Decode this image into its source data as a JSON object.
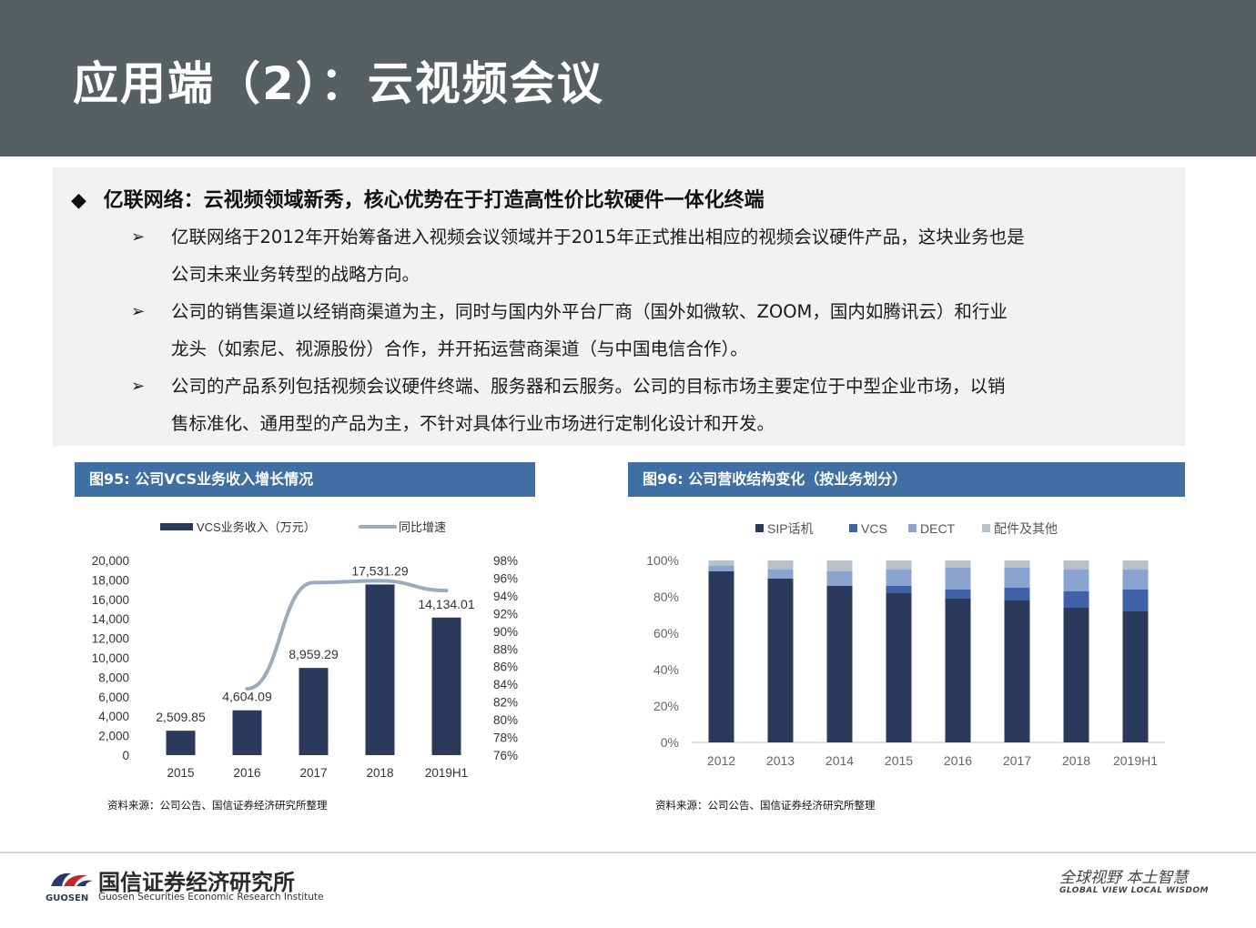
{
  "header": {
    "title": "应用端（2）：云视频会议"
  },
  "summary": {
    "heading": "亿联网络：云视频领域新秀，核心优势在于打造高性价比软硬件一体化终端",
    "heading_marker": "◆",
    "bullet_marker": "➢",
    "bullets": [
      {
        "line1": "亿联网络于2012年开始筹备进入视频会议领域并于2015年正式推出相应的视频会议硬件产品，这块业务也是",
        "line2": "公司未来业务转型的战略方向。"
      },
      {
        "line1": "公司的销售渠道以经销商渠道为主，同时与国内外平台厂商（国外如微软、ZOOM，国内如腾讯云）和行业",
        "line2": "龙头（如索尼、视源股份）合作，并开拓运营商渠道（与中国电信合作）。"
      },
      {
        "line1": "公司的产品系列包括视频会议硬件终端、服务器和云服务。公司的目标市场主要定位于中型企业市场，以销",
        "line2": "售标准化、通用型的产品为主，不针对具体行业市场进行定制化设计和开发。"
      }
    ]
  },
  "figures": {
    "fig95": {
      "title": "图95: 公司VCS业务收入增长情况",
      "source": "资料来源：公司公告、国信证券经济研究所整理"
    },
    "fig96": {
      "title": "图96: 公司营收结构变化（按业务划分）",
      "source": "资料来源：公司公告、国信证券经济研究所整理"
    }
  },
  "colors": {
    "bar_dark": "#2b3a5c",
    "line_grey": "#9aabbd",
    "vcs_blue": "#3e61a8",
    "dect_blue": "#8ba3cf",
    "other_grey": "#b8c0c9",
    "fig_bar": "#3f6fa3",
    "header": "#566063"
  },
  "chart_data": [
    {
      "type": "bar",
      "categories": [
        "2015",
        "2016",
        "2017",
        "2018",
        "2019H1"
      ],
      "series": [
        {
          "name": "VCS业务收入（万元）",
          "values": [
            2509.85,
            4604.09,
            8959.29,
            17531.29,
            14134.01
          ],
          "labels": [
            "2,509.85",
            "4,604.09",
            "8,959.29",
            "17,531.29",
            "14,134.01"
          ],
          "axis": "left",
          "type": "bar"
        },
        {
          "name": "同比增速",
          "values": [
            null,
            83.5,
            95.5,
            95.7,
            94.6
          ],
          "axis": "right",
          "type": "line",
          "unit": "%"
        }
      ],
      "ylim": [
        0,
        20000
      ],
      "yticks": [
        "0",
        "2,000",
        "4,000",
        "6,000",
        "8,000",
        "10,000",
        "12,000",
        "14,000",
        "16,000",
        "18,000",
        "20,000"
      ],
      "y2lim": [
        76,
        98
      ],
      "y2ticks": [
        "76%",
        "78%",
        "80%",
        "82%",
        "84%",
        "86%",
        "88%",
        "90%",
        "92%",
        "94%",
        "96%",
        "98%"
      ],
      "legend": "top",
      "grid": false
    },
    {
      "type": "bar",
      "stacked": true,
      "categories": [
        "2012",
        "2013",
        "2014",
        "2015",
        "2016",
        "2017",
        "2018",
        "2019H1"
      ],
      "series": [
        {
          "name": "SIP话机",
          "values": [
            94,
            90,
            86,
            82,
            79,
            78,
            74,
            72
          ]
        },
        {
          "name": "VCS",
          "values": [
            0,
            0,
            0,
            4,
            5,
            7,
            9,
            12
          ]
        },
        {
          "name": "DECT",
          "values": [
            3,
            5,
            8,
            9,
            12,
            11,
            12,
            11
          ]
        },
        {
          "name": "配件及其他",
          "values": [
            3,
            5,
            6,
            5,
            4,
            4,
            5,
            5
          ]
        }
      ],
      "ylim": [
        0,
        100
      ],
      "yticks": [
        "0%",
        "20%",
        "40%",
        "60%",
        "80%",
        "100%"
      ],
      "legend": "top",
      "grid": false
    }
  ],
  "footer": {
    "company_cn": "国信证券经济研究所",
    "company_short": "GUOSEN",
    "company_en": "Guosen Securities Economic Research Institute",
    "slogan_cn": "全球视野  本土智慧",
    "slogan_en": "GLOBAL VIEW   LOCAL WISDOM"
  }
}
